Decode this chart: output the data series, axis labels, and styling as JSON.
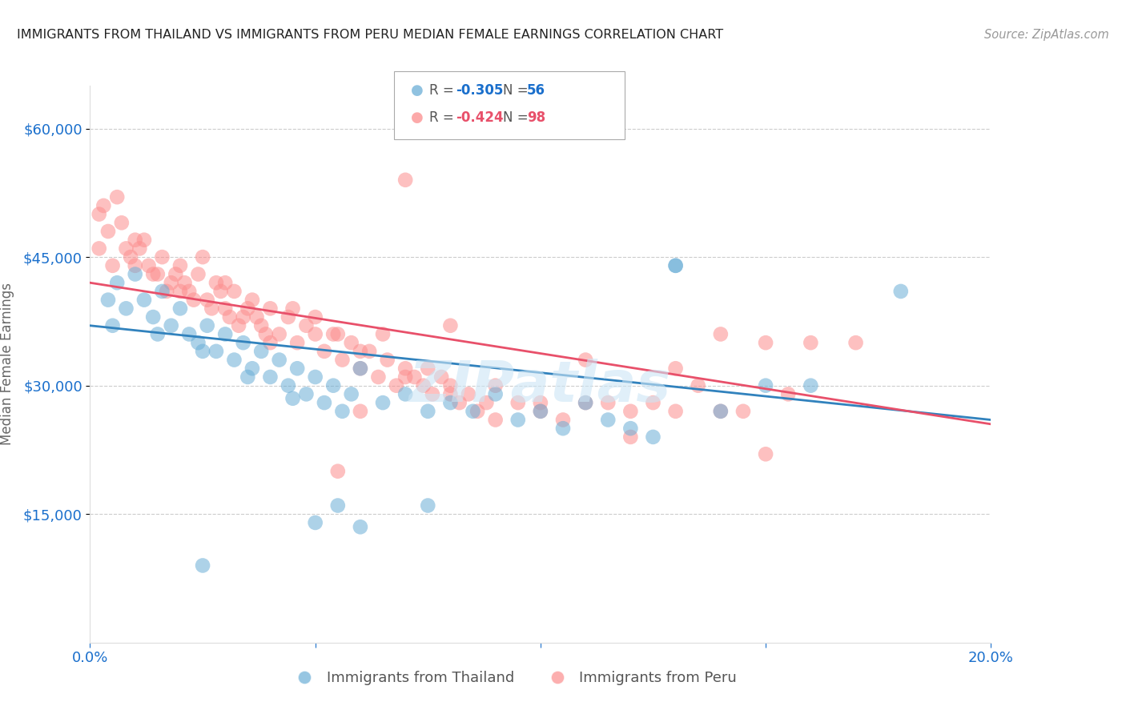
{
  "title": "IMMIGRANTS FROM THAILAND VS IMMIGRANTS FROM PERU MEDIAN FEMALE EARNINGS CORRELATION CHART",
  "source": "Source: ZipAtlas.com",
  "ylabel": "Median Female Earnings",
  "ytick_labels": [
    "$60,000",
    "$45,000",
    "$30,000",
    "$15,000"
  ],
  "ytick_values": [
    60000,
    45000,
    30000,
    15000
  ],
  "ylim": [
    0,
    65000
  ],
  "xlim": [
    0.0,
    0.2
  ],
  "legend_bottom": [
    "Immigrants from Thailand",
    "Immigrants from Peru"
  ],
  "r_thailand": -0.305,
  "n_thailand": 56,
  "r_peru": -0.424,
  "n_peru": 98,
  "background_color": "#ffffff",
  "grid_color": "#cccccc",
  "title_color": "#222222",
  "axis_label_color": "#1a6fcc",
  "watermark": "ZIPatlas",
  "thailand_color": "#6baed6",
  "peru_color": "#fc8d8d",
  "thailand_line_color": "#3182bd",
  "peru_line_color": "#e8506a",
  "thailand_line": {
    "x0": 0.0,
    "y0": 37000,
    "x1": 0.2,
    "y1": 26000
  },
  "peru_line": {
    "x0": 0.0,
    "y0": 42000,
    "x1": 0.2,
    "y1": 25500
  },
  "thailand_scatter": [
    [
      0.004,
      40000
    ],
    [
      0.006,
      42000
    ],
    [
      0.008,
      39000
    ],
    [
      0.01,
      43000
    ],
    [
      0.012,
      40000
    ],
    [
      0.014,
      38000
    ],
    [
      0.016,
      41000
    ],
    [
      0.018,
      37000
    ],
    [
      0.02,
      39000
    ],
    [
      0.022,
      36000
    ],
    [
      0.024,
      35000
    ],
    [
      0.026,
      37000
    ],
    [
      0.028,
      34000
    ],
    [
      0.03,
      36000
    ],
    [
      0.032,
      33000
    ],
    [
      0.034,
      35000
    ],
    [
      0.036,
      32000
    ],
    [
      0.038,
      34000
    ],
    [
      0.04,
      31000
    ],
    [
      0.042,
      33000
    ],
    [
      0.044,
      30000
    ],
    [
      0.046,
      32000
    ],
    [
      0.048,
      29000
    ],
    [
      0.05,
      31000
    ],
    [
      0.052,
      28000
    ],
    [
      0.054,
      30000
    ],
    [
      0.056,
      27000
    ],
    [
      0.058,
      29000
    ],
    [
      0.06,
      32000
    ],
    [
      0.065,
      28000
    ],
    [
      0.07,
      29000
    ],
    [
      0.075,
      27000
    ],
    [
      0.08,
      28000
    ],
    [
      0.085,
      27000
    ],
    [
      0.09,
      29000
    ],
    [
      0.095,
      26000
    ],
    [
      0.1,
      27000
    ],
    [
      0.105,
      25000
    ],
    [
      0.11,
      28000
    ],
    [
      0.115,
      26000
    ],
    [
      0.12,
      25000
    ],
    [
      0.125,
      24000
    ],
    [
      0.13,
      44000
    ],
    [
      0.18,
      41000
    ],
    [
      0.05,
      14000
    ],
    [
      0.055,
      16000
    ],
    [
      0.06,
      13500
    ],
    [
      0.075,
      16000
    ],
    [
      0.025,
      9000
    ],
    [
      0.15,
      30000
    ],
    [
      0.14,
      27000
    ],
    [
      0.16,
      30000
    ],
    [
      0.005,
      37000
    ],
    [
      0.015,
      36000
    ],
    [
      0.025,
      34000
    ],
    [
      0.035,
      31000
    ],
    [
      0.045,
      28500
    ],
    [
      0.13,
      44000
    ]
  ],
  "peru_scatter": [
    [
      0.002,
      50000
    ],
    [
      0.004,
      48000
    ],
    [
      0.006,
      52000
    ],
    [
      0.008,
      46000
    ],
    [
      0.01,
      44000
    ],
    [
      0.012,
      47000
    ],
    [
      0.014,
      43000
    ],
    [
      0.016,
      45000
    ],
    [
      0.018,
      42000
    ],
    [
      0.02,
      44000
    ],
    [
      0.022,
      41000
    ],
    [
      0.024,
      43000
    ],
    [
      0.026,
      40000
    ],
    [
      0.028,
      42000
    ],
    [
      0.03,
      39000
    ],
    [
      0.032,
      41000
    ],
    [
      0.034,
      38000
    ],
    [
      0.036,
      40000
    ],
    [
      0.038,
      37000
    ],
    [
      0.04,
      39000
    ],
    [
      0.042,
      36000
    ],
    [
      0.044,
      38000
    ],
    [
      0.046,
      35000
    ],
    [
      0.048,
      37000
    ],
    [
      0.05,
      36000
    ],
    [
      0.052,
      34000
    ],
    [
      0.054,
      36000
    ],
    [
      0.056,
      33000
    ],
    [
      0.058,
      35000
    ],
    [
      0.06,
      32000
    ],
    [
      0.062,
      34000
    ],
    [
      0.064,
      31000
    ],
    [
      0.066,
      33000
    ],
    [
      0.068,
      30000
    ],
    [
      0.07,
      32000
    ],
    [
      0.072,
      31000
    ],
    [
      0.074,
      30000
    ],
    [
      0.076,
      29000
    ],
    [
      0.078,
      31000
    ],
    [
      0.08,
      30000
    ],
    [
      0.082,
      28000
    ],
    [
      0.084,
      29000
    ],
    [
      0.086,
      27000
    ],
    [
      0.088,
      28000
    ],
    [
      0.09,
      26000
    ],
    [
      0.095,
      28000
    ],
    [
      0.1,
      27000
    ],
    [
      0.105,
      26000
    ],
    [
      0.11,
      33000
    ],
    [
      0.115,
      28000
    ],
    [
      0.12,
      27000
    ],
    [
      0.125,
      28000
    ],
    [
      0.13,
      32000
    ],
    [
      0.135,
      30000
    ],
    [
      0.14,
      36000
    ],
    [
      0.145,
      27000
    ],
    [
      0.15,
      35000
    ],
    [
      0.155,
      29000
    ],
    [
      0.16,
      35000
    ],
    [
      0.17,
      35000
    ],
    [
      0.005,
      44000
    ],
    [
      0.01,
      47000
    ],
    [
      0.015,
      43000
    ],
    [
      0.02,
      41000
    ],
    [
      0.025,
      45000
    ],
    [
      0.03,
      42000
    ],
    [
      0.035,
      39000
    ],
    [
      0.04,
      35000
    ],
    [
      0.045,
      39000
    ],
    [
      0.05,
      38000
    ],
    [
      0.055,
      36000
    ],
    [
      0.06,
      34000
    ],
    [
      0.065,
      36000
    ],
    [
      0.07,
      31000
    ],
    [
      0.075,
      32000
    ],
    [
      0.08,
      37000
    ],
    [
      0.002,
      46000
    ],
    [
      0.003,
      51000
    ],
    [
      0.007,
      49000
    ],
    [
      0.009,
      45000
    ],
    [
      0.011,
      46000
    ],
    [
      0.013,
      44000
    ],
    [
      0.017,
      41000
    ],
    [
      0.019,
      43000
    ],
    [
      0.021,
      42000
    ],
    [
      0.023,
      40000
    ],
    [
      0.027,
      39000
    ],
    [
      0.029,
      41000
    ],
    [
      0.031,
      38000
    ],
    [
      0.033,
      37000
    ],
    [
      0.037,
      38000
    ],
    [
      0.039,
      36000
    ],
    [
      0.055,
      20000
    ],
    [
      0.07,
      54000
    ],
    [
      0.13,
      27000
    ],
    [
      0.15,
      22000
    ],
    [
      0.06,
      27000
    ],
    [
      0.08,
      29000
    ],
    [
      0.09,
      30000
    ],
    [
      0.1,
      28000
    ],
    [
      0.11,
      28000
    ],
    [
      0.12,
      24000
    ],
    [
      0.14,
      27000
    ]
  ]
}
